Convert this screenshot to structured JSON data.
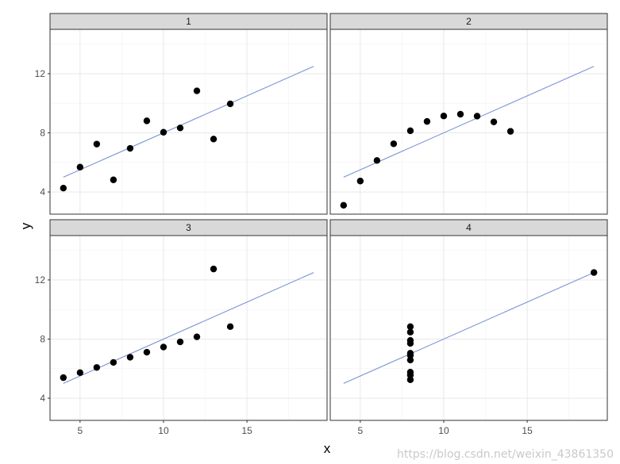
{
  "chart_data": {
    "type": "scatter",
    "facet_labels": [
      "1",
      "2",
      "3",
      "4"
    ],
    "xlabel": "x",
    "ylabel": "y",
    "x_ticks": [
      5,
      10,
      15
    ],
    "y_ticks": [
      4,
      8,
      12
    ],
    "xlim": [
      3.2,
      19.8
    ],
    "ylim": [
      2.5,
      15.0
    ],
    "grid": true,
    "fit_line": {
      "intercept": 3.0,
      "slope": 0.5,
      "x_range": [
        4,
        19
      ],
      "color": "#7b93d6"
    },
    "point_color": "#000000",
    "panels": [
      {
        "label": "1",
        "x": [
          10,
          8,
          13,
          9,
          11,
          14,
          6,
          4,
          12,
          7,
          5
        ],
        "y": [
          8.04,
          6.95,
          7.58,
          8.81,
          8.33,
          9.96,
          7.24,
          4.26,
          10.84,
          4.82,
          5.68
        ]
      },
      {
        "label": "2",
        "x": [
          10,
          8,
          13,
          9,
          11,
          14,
          6,
          4,
          12,
          7,
          5
        ],
        "y": [
          9.14,
          8.14,
          8.74,
          8.77,
          9.26,
          8.1,
          6.13,
          3.1,
          9.13,
          7.26,
          4.74
        ]
      },
      {
        "label": "3",
        "x": [
          10,
          8,
          13,
          9,
          11,
          14,
          6,
          4,
          12,
          7,
          5
        ],
        "y": [
          7.46,
          6.77,
          12.74,
          7.11,
          7.81,
          8.84,
          6.08,
          5.39,
          8.15,
          6.42,
          5.73
        ]
      },
      {
        "label": "4",
        "x": [
          8,
          8,
          8,
          8,
          8,
          8,
          8,
          19,
          8,
          8,
          8
        ],
        "y": [
          6.58,
          5.76,
          7.71,
          8.84,
          8.47,
          7.04,
          5.25,
          12.5,
          5.56,
          7.91,
          6.89
        ]
      }
    ]
  },
  "watermark": "https://blog.csdn.net/weixin_43861350"
}
